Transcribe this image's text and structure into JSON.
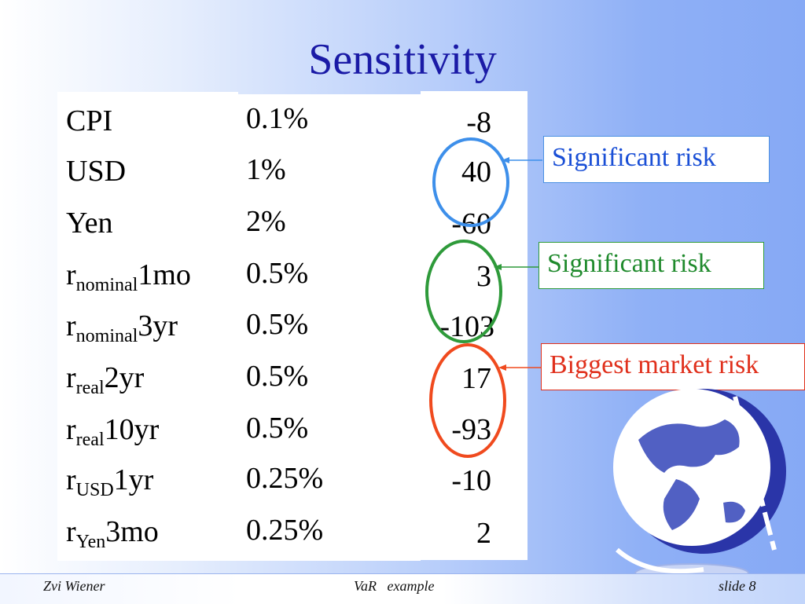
{
  "slide": {
    "title": "Sensitivity",
    "rows": [
      {
        "base": "CPI",
        "sub": "",
        "suffix": "",
        "change": "0.1%",
        "value": "-8"
      },
      {
        "base": "USD",
        "sub": "",
        "suffix": "",
        "change": "1%",
        "value": "40"
      },
      {
        "base": "Yen",
        "sub": "",
        "suffix": "",
        "change": "2%",
        "value": "-60"
      },
      {
        "base": "r",
        "sub": "nominal",
        "suffix": "1mo",
        "change": "0.5%",
        "value": "3"
      },
      {
        "base": "r",
        "sub": "nominal",
        "suffix": "3yr",
        "change": "0.5%",
        "value": "-103"
      },
      {
        "base": "r",
        "sub": "real",
        "suffix": "2yr",
        "change": "0.5%",
        "value": "17"
      },
      {
        "base": "r",
        "sub": "real",
        "suffix": "10yr",
        "change": "0.5%",
        "value": "-93"
      },
      {
        "base": "r",
        "sub": "USD",
        "suffix": "1yr",
        "change": "0.25%",
        "value": "-10"
      },
      {
        "base": "r",
        "sub": "Yen",
        "suffix": "3mo",
        "change": "0.25%",
        "value": "2"
      }
    ],
    "callouts": [
      {
        "text": "Significant risk",
        "color": "#1a4fd6"
      },
      {
        "text": "Significant risk",
        "color": "#1f8a2c"
      },
      {
        "text": "Biggest market risk",
        "color": "#e0301c"
      }
    ],
    "ring_colors": [
      "#3d8fea",
      "#2e9a3a",
      "#f04a1e"
    ]
  },
  "footer": {
    "author": "Zvi Wiener",
    "topic": "VaR   example",
    "slide": "slide 8"
  }
}
